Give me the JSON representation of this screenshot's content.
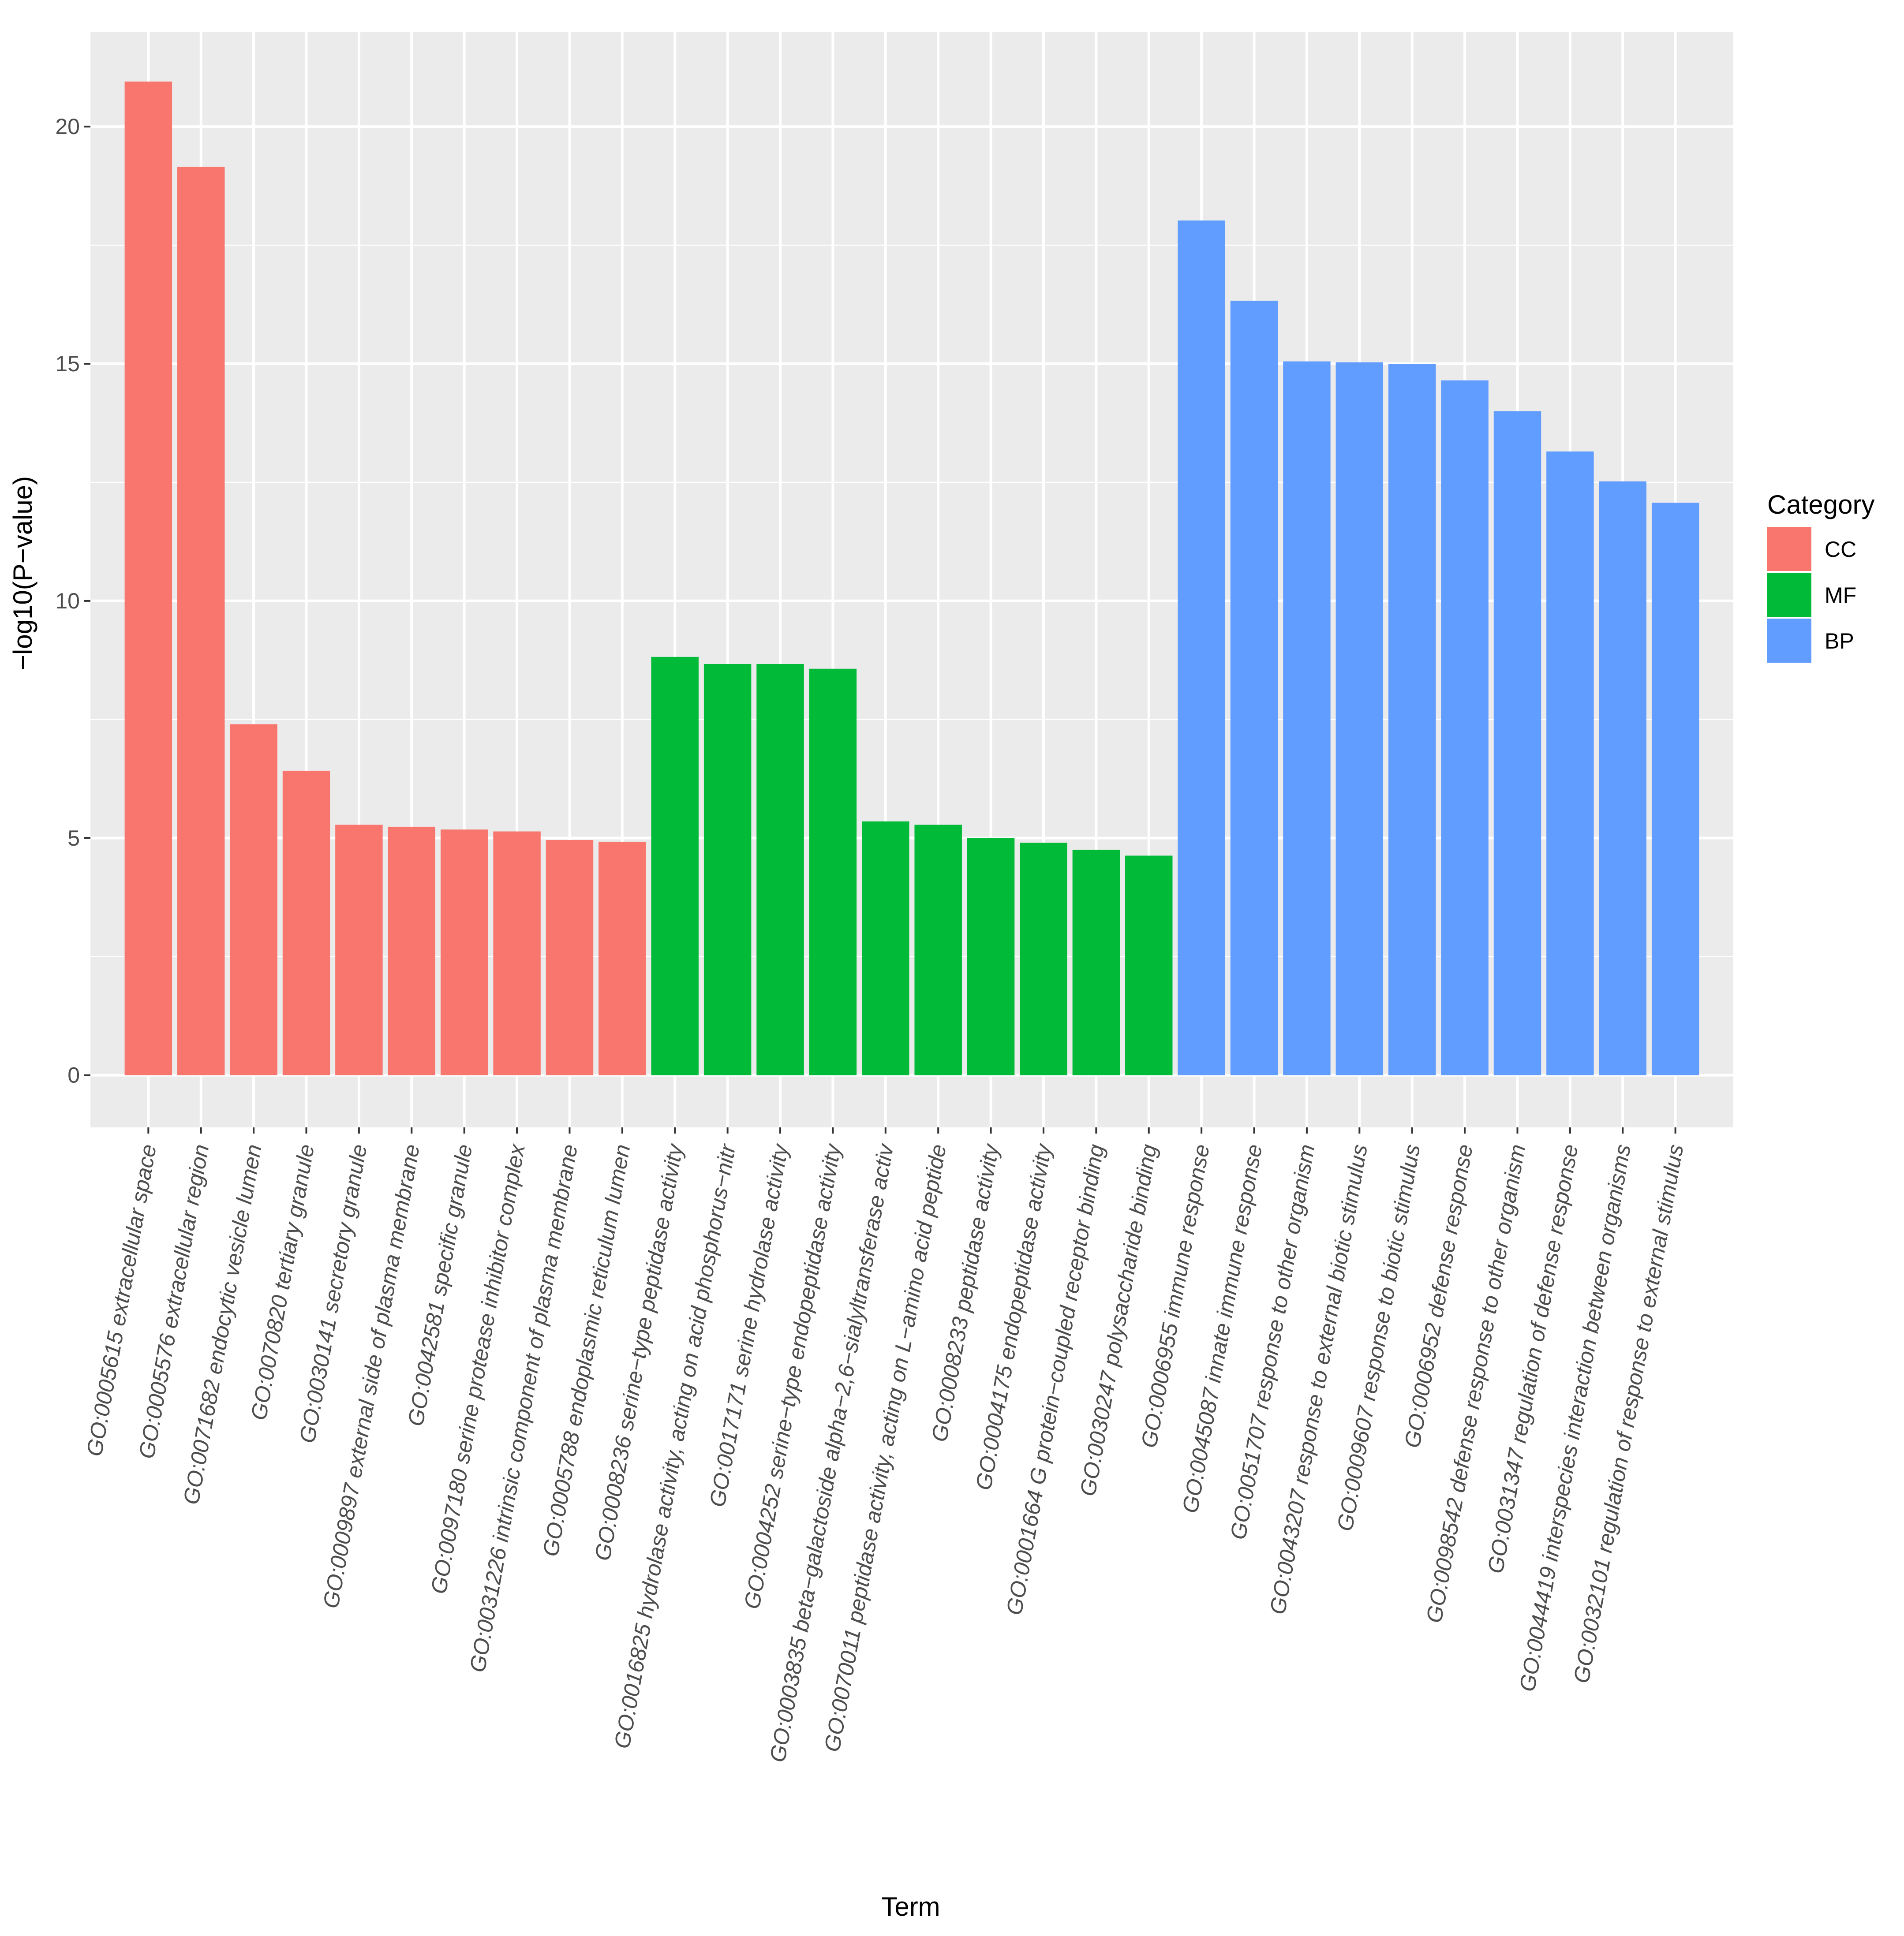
{
  "chart_data": {
    "type": "bar",
    "title": "",
    "xlabel": "Term",
    "ylabel": "−log10(P−value)",
    "ylim": [
      -1.1,
      22
    ],
    "yticks": [
      0,
      5,
      10,
      15,
      20
    ],
    "grid": true,
    "legend": {
      "title": "Category",
      "placement": "right",
      "entries": [
        {
          "label": "CC",
          "color": "#F8766D"
        },
        {
          "label": "MF",
          "color": "#00BA38"
        },
        {
          "label": "BP",
          "color": "#619CFF"
        }
      ]
    },
    "colors": {
      "panel_background": "#EBEBEB",
      "grid_major": "#FFFFFF",
      "CC": "#F8766D",
      "MF": "#00BA38",
      "BP": "#619CFF"
    },
    "bars": [
      {
        "category": "CC",
        "term": "GO:0005615 extracellular space",
        "value": 20.95
      },
      {
        "category": "CC",
        "term": "GO:0005576 extracellular region",
        "value": 19.15
      },
      {
        "category": "CC",
        "term": "GO:0071682 endocytic vesicle lumen",
        "value": 7.4
      },
      {
        "category": "CC",
        "term": "GO:0070820 tertiary granule",
        "value": 6.42
      },
      {
        "category": "CC",
        "term": "GO:0030141 secretory granule",
        "value": 5.28
      },
      {
        "category": "CC",
        "term": "GO:0009897 external side of plasma membrane",
        "value": 5.24
      },
      {
        "category": "CC",
        "term": "GO:0042581 specific granule",
        "value": 5.18
      },
      {
        "category": "CC",
        "term": "GO:0097180 serine protease inhibitor complex",
        "value": 5.14
      },
      {
        "category": "CC",
        "term": "GO:0031226 intrinsic component of plasma membrane",
        "value": 4.96
      },
      {
        "category": "CC",
        "term": "GO:0005788 endoplasmic reticulum lumen",
        "value": 4.92
      },
      {
        "category": "MF",
        "term": "GO:0008236 serine−type peptidase activity",
        "value": 8.82
      },
      {
        "category": "MF",
        "term": "GO:0016825 hydrolase activity, acting on acid phosphorus−nitr",
        "value": 8.67
      },
      {
        "category": "MF",
        "term": "GO:0017171 serine hydrolase activity",
        "value": 8.67
      },
      {
        "category": "MF",
        "term": "GO:0004252 serine−type endopeptidase activity",
        "value": 8.57
      },
      {
        "category": "MF",
        "term": "GO:0003835 beta−galactoside alpha−2,6−sialyltransferase activ",
        "value": 5.35
      },
      {
        "category": "MF",
        "term": "GO:0070011 peptidase activity, acting on L−amino acid peptide",
        "value": 5.28
      },
      {
        "category": "MF",
        "term": "GO:0008233 peptidase activity",
        "value": 5.0
      },
      {
        "category": "MF",
        "term": "GO:0004175 endopeptidase activity",
        "value": 4.9
      },
      {
        "category": "MF",
        "term": "GO:0001664 G protein−coupled receptor binding",
        "value": 4.75
      },
      {
        "category": "MF",
        "term": "GO:0030247 polysaccharide binding",
        "value": 4.63
      },
      {
        "category": "BP",
        "term": "GO:0006955 immune response",
        "value": 18.02
      },
      {
        "category": "BP",
        "term": "GO:0045087 innate immune response",
        "value": 16.33
      },
      {
        "category": "BP",
        "term": "GO:0051707 response to other organism",
        "value": 15.05
      },
      {
        "category": "BP",
        "term": "GO:0043207 response to external biotic stimulus",
        "value": 15.03
      },
      {
        "category": "BP",
        "term": "GO:0009607 response to biotic stimulus",
        "value": 15.0
      },
      {
        "category": "BP",
        "term": "GO:0006952 defense response",
        "value": 14.65
      },
      {
        "category": "BP",
        "term": "GO:0098542 defense response to other organism",
        "value": 14.0
      },
      {
        "category": "BP",
        "term": "GO:0031347 regulation of defense response",
        "value": 13.15
      },
      {
        "category": "BP",
        "term": "GO:0044419 interspecies interaction between organisms",
        "value": 12.52
      },
      {
        "category": "BP",
        "term": "GO:0032101 regulation of response to external stimulus",
        "value": 12.07
      }
    ]
  }
}
